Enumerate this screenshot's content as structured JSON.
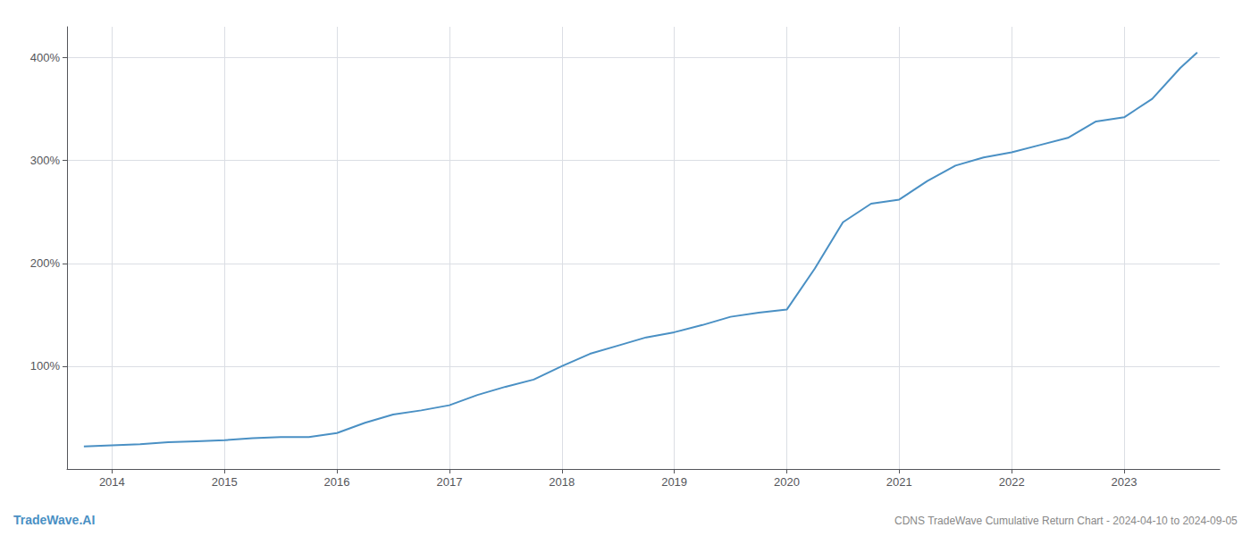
{
  "chart_data": {
    "type": "line",
    "title": "CDNS TradeWave Cumulative Return Chart - 2024-04-10 to 2024-09-05",
    "annotations": [
      "TradeWave.AI"
    ],
    "color": "#4a90c4",
    "x": [
      2013.75,
      2014.0,
      2014.25,
      2014.5,
      2014.75,
      2015.0,
      2015.25,
      2015.5,
      2015.75,
      2016.0,
      2016.25,
      2016.5,
      2016.75,
      2017.0,
      2017.25,
      2017.5,
      2017.75,
      2018.0,
      2018.25,
      2018.5,
      2018.75,
      2019.0,
      2019.25,
      2019.5,
      2019.75,
      2020.0,
      2020.25,
      2020.5,
      2020.75,
      2021.0,
      2021.25,
      2021.5,
      2021.75,
      2022.0,
      2022.25,
      2022.5,
      2022.75,
      2023.0,
      2023.25,
      2023.5,
      2023.65
    ],
    "values": [
      22,
      23,
      24,
      26,
      27,
      28,
      30,
      31,
      31,
      35,
      45,
      53,
      57,
      62,
      72,
      80,
      87,
      100,
      112,
      120,
      128,
      133,
      140,
      148,
      152,
      155,
      195,
      240,
      258,
      262,
      280,
      295,
      303,
      308,
      315,
      322,
      338,
      342,
      360,
      390,
      405
    ],
    "xlim": [
      2013.6,
      2023.85
    ],
    "xticks": [
      2014,
      2015,
      2016,
      2017,
      2018,
      2019,
      2020,
      2021,
      2022,
      2023
    ],
    "ylim": [
      0,
      430
    ],
    "yticks": [
      {
        "value": 100,
        "label": "100%"
      },
      {
        "value": 200,
        "label": "200%"
      },
      {
        "value": 300,
        "label": "300%"
      },
      {
        "value": 400,
        "label": "400%"
      }
    ],
    "grid": true
  }
}
